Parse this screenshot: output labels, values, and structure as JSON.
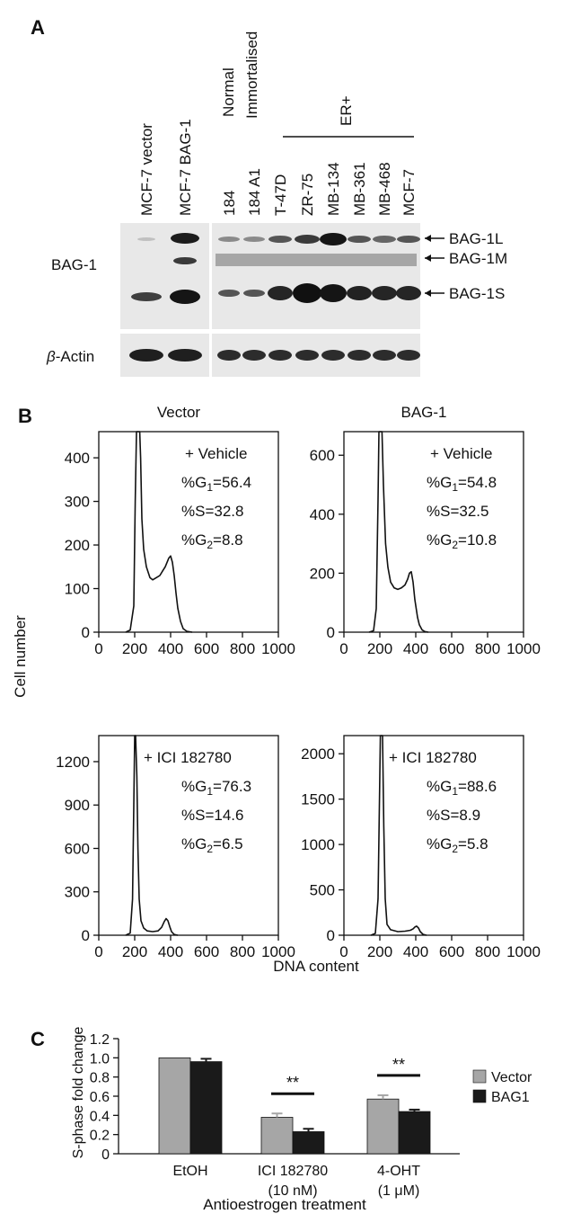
{
  "panel_a": {
    "letter": "A",
    "group_normal": "Normal",
    "group_immortalised": "Immortalised",
    "group_er": "ER+",
    "lanes_left": [
      "MCF-7 vector",
      "MCF-7 BAG-1"
    ],
    "lanes_right": [
      "184",
      "184 A1",
      "T-47D",
      "ZR-75",
      "MB-134",
      "MB-361",
      "MB-468",
      "MCF-7"
    ],
    "row_bag1": "BAG-1",
    "row_actin_symbol": "β",
    "row_actin_rest": "-Actin",
    "band_labels": [
      "BAG-1L",
      "BAG-1M",
      "BAG-1S"
    ]
  },
  "panel_b": {
    "letter": "B",
    "col_titles": [
      "Vector",
      "BAG-1"
    ],
    "ylabel": "Cell number",
    "xlabel": "DNA content",
    "xticks": [
      "0",
      "200",
      "400",
      "600",
      "800",
      "1000"
    ],
    "plots": [
      {
        "name": "vector-vehicle",
        "ylim": [
          0,
          460
        ],
        "yticks": [
          "0",
          "100",
          "200",
          "300",
          "400"
        ],
        "treatment": "+ Vehicle",
        "g1": "56.4",
        "s": "32.8",
        "g2": "8.8"
      },
      {
        "name": "bag1-vehicle",
        "ylim": [
          0,
          680
        ],
        "yticks": [
          "0",
          "200",
          "400",
          "600"
        ],
        "treatment": "+ Vehicle",
        "g1": "54.8",
        "s": "32.5",
        "g2": "10.8"
      },
      {
        "name": "vector-ici",
        "ylim": [
          0,
          1380
        ],
        "yticks": [
          "0",
          "300",
          "600",
          "900",
          "1200"
        ],
        "treatment": "+ ICI 182780",
        "g1": "76.3",
        "s": "14.6",
        "g2": "6.5"
      },
      {
        "name": "bag1-ici",
        "ylim": [
          0,
          2200
        ],
        "yticks": [
          "0",
          "500",
          "1000",
          "1500",
          "2000"
        ],
        "treatment": "+ ICI 182780",
        "g1": "88.6",
        "s": "8.9",
        "g2": "5.8"
      }
    ]
  },
  "panel_c": {
    "letter": "C",
    "ylabel": "S-phase fold change",
    "xlabel": "Antioestrogen treatment",
    "categories": [
      "EtOH",
      "ICI 182780",
      "4-OHT"
    ],
    "category_sublabels": [
      "",
      "(10 nM)",
      "(1 μM)"
    ],
    "significance": [
      "",
      "**",
      "**"
    ]
  },
  "colors": {
    "vector": "#a6a6a6",
    "bag1": "#1a1a1a"
  },
  "chart_data": [
    {
      "type": "line",
      "title": "Vector + Vehicle",
      "xlabel": "DNA content",
      "ylabel": "Cell number",
      "xlim": [
        0,
        1000
      ],
      "ylim": [
        0,
        460
      ],
      "x": [
        150,
        175,
        195,
        203,
        210,
        215,
        222,
        228,
        233,
        240,
        250,
        265,
        285,
        300,
        320,
        340,
        355,
        370,
        380,
        390,
        400,
        410,
        420,
        430,
        440,
        455,
        470,
        490,
        520
      ],
      "y": [
        0,
        5,
        60,
        300,
        460,
        460,
        460,
        460,
        400,
        260,
        190,
        150,
        125,
        120,
        125,
        130,
        140,
        150,
        160,
        170,
        175,
        160,
        130,
        90,
        55,
        25,
        8,
        2,
        0
      ]
    },
    {
      "type": "line",
      "title": "BAG-1 + Vehicle",
      "xlabel": "DNA content",
      "ylabel": "Cell number",
      "xlim": [
        0,
        1000
      ],
      "ylim": [
        0,
        680
      ],
      "x": [
        140,
        165,
        180,
        190,
        195,
        200,
        205,
        212,
        220,
        232,
        245,
        260,
        280,
        300,
        320,
        340,
        355,
        365,
        375,
        385,
        395,
        410,
        420,
        435,
        450,
        470
      ],
      "y": [
        0,
        5,
        80,
        450,
        680,
        680,
        680,
        680,
        500,
        300,
        220,
        170,
        150,
        145,
        150,
        160,
        180,
        200,
        205,
        170,
        110,
        50,
        25,
        8,
        2,
        0
      ]
    },
    {
      "type": "line",
      "title": "Vector + ICI 182780",
      "xlabel": "DNA content",
      "ylabel": "Cell number",
      "xlim": [
        0,
        1000
      ],
      "ylim": [
        0,
        1380
      ],
      "x": [
        150,
        175,
        188,
        195,
        200,
        205,
        212,
        218,
        225,
        235,
        250,
        270,
        300,
        330,
        350,
        365,
        375,
        385,
        395,
        405,
        420,
        440
      ],
      "y": [
        0,
        15,
        250,
        900,
        1380,
        1380,
        1100,
        600,
        250,
        100,
        50,
        30,
        25,
        30,
        55,
        95,
        115,
        100,
        60,
        25,
        5,
        0
      ]
    },
    {
      "type": "line",
      "title": "BAG-1 + ICI 182780",
      "xlabel": "DNA content",
      "ylabel": "Cell number",
      "xlim": [
        0,
        1000
      ],
      "ylim": [
        0,
        2200
      ],
      "x": [
        150,
        175,
        190,
        198,
        203,
        208,
        215,
        222,
        230,
        240,
        260,
        300,
        340,
        370,
        385,
        395,
        405,
        415,
        425,
        440,
        460
      ],
      "y": [
        0,
        20,
        400,
        1500,
        2200,
        2200,
        2200,
        1200,
        400,
        120,
        60,
        40,
        45,
        55,
        70,
        90,
        100,
        80,
        40,
        10,
        0
      ]
    },
    {
      "type": "bar",
      "xlabel": "Antioestrogen treatment",
      "ylabel": "S-phase fold change",
      "ylim": [
        0,
        1.2
      ],
      "categories": [
        "EtOH",
        "ICI 182780 (10 nM)",
        "4-OHT (1 μM)"
      ],
      "legend": "right",
      "series": [
        {
          "name": "Vector",
          "values": [
            1.0,
            0.38,
            0.57
          ],
          "errors": [
            0.0,
            0.04,
            0.04
          ]
        },
        {
          "name": "BAG1",
          "values": [
            0.96,
            0.23,
            0.44
          ],
          "errors": [
            0.03,
            0.03,
            0.02
          ]
        }
      ]
    }
  ]
}
